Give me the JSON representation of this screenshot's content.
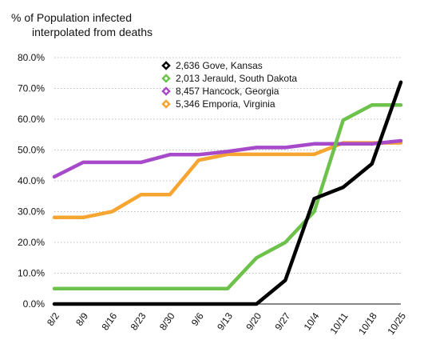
{
  "chart_data": {
    "type": "line",
    "title_line1": "% of Population infected",
    "title_line2": "interpolated from deaths",
    "xlabel": "",
    "ylabel": "",
    "ylim": [
      0,
      80
    ],
    "yticks": [
      "0.0%",
      "10.0%",
      "20.0%",
      "30.0%",
      "40.0%",
      "50.0%",
      "60.0%",
      "70.0%",
      "80.0%"
    ],
    "categories": [
      "8/2",
      "8/9",
      "8/16",
      "8/23",
      "8/30",
      "9/6",
      "9/13",
      "9/20",
      "9/27",
      "10/4",
      "10/11",
      "10/18",
      "10/25"
    ],
    "grid": "horizontal",
    "legend_position": "top-center",
    "series": [
      {
        "name": "2,636 Gove, Kansas",
        "color": "#000000",
        "values": [
          0,
          0,
          0,
          0,
          0,
          0,
          0,
          0,
          7.7,
          34.2,
          37.9,
          45.5,
          72.0
        ]
      },
      {
        "name": "2,013 Jerauld, South Dakota",
        "color": "#6cc24a",
        "values": [
          5.0,
          5.0,
          5.0,
          5.0,
          5.0,
          5.0,
          5.0,
          15.0,
          20.0,
          30.0,
          59.7,
          64.6,
          64.6
        ]
      },
      {
        "name": "8,457 Hancock, Georgia",
        "color": "#a64ac9",
        "values": [
          41.3,
          46.0,
          46.0,
          46.0,
          48.5,
          48.5,
          49.5,
          50.8,
          50.8,
          52.0,
          52.0,
          52.0,
          53.0
        ]
      },
      {
        "name": "5,346 Emporia, Virginia",
        "color": "#f7a531",
        "values": [
          28.1,
          28.1,
          30.0,
          35.5,
          35.5,
          46.7,
          48.6,
          48.6,
          48.6,
          48.6,
          52.3,
          52.3,
          52.3
        ]
      }
    ]
  }
}
